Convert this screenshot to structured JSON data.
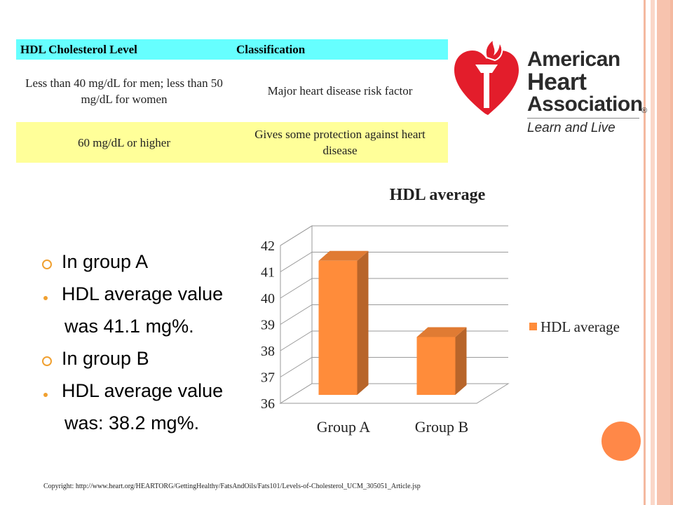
{
  "table": {
    "headers": [
      "HDL Cholesterol Level",
      "Classification"
    ],
    "rows": [
      [
        "Less than 40 mg/dL for men; less than 50 mg/dL for women",
        "Major heart disease risk factor"
      ],
      [
        "60 mg/dL or higher",
        "Gives some protection against heart disease"
      ]
    ],
    "colors": {
      "header": "#66FFFF",
      "row2": "#FFFF99"
    }
  },
  "logo": {
    "line1": "American",
    "line2": "Heart",
    "line3": "Association",
    "registered": "®",
    "tagline": "Learn and Live",
    "color": "#E31D2B"
  },
  "bullets": {
    "group_a": "In group A",
    "group_a_value_1": "HDL average value",
    "group_a_value_2": "was 41.1 mg%.",
    "group_b": "In group B",
    "group_b_value_1": "HDL average value",
    "group_b_value_2": "was: 38.2 mg%.",
    "marker_color": "#F0A030"
  },
  "chart_data": {
    "type": "bar",
    "title": "HDL average",
    "categories": [
      "Group A",
      "Group B"
    ],
    "series": [
      {
        "name": "HDL average",
        "values": [
          41.1,
          38.2
        ],
        "color": "#FF8C3A"
      }
    ],
    "ylim": [
      36,
      42
    ],
    "yticks": [
      36,
      37,
      38,
      39,
      40,
      41,
      42
    ],
    "xlabel": "",
    "ylabel": "",
    "grid": true,
    "legend": "right",
    "style": "3d"
  },
  "copyright": "Copyright: http://www.heart.org/HEARTORG/GettingHealthy/FatsAndOils/Fats101/Levels-of-Cholesterol_UCM_305051_Article.jsp",
  "theme": {
    "accent": "#FF8848",
    "stripe_light": "#FAD7C8",
    "stripe_mid": "#F4B9A0"
  }
}
